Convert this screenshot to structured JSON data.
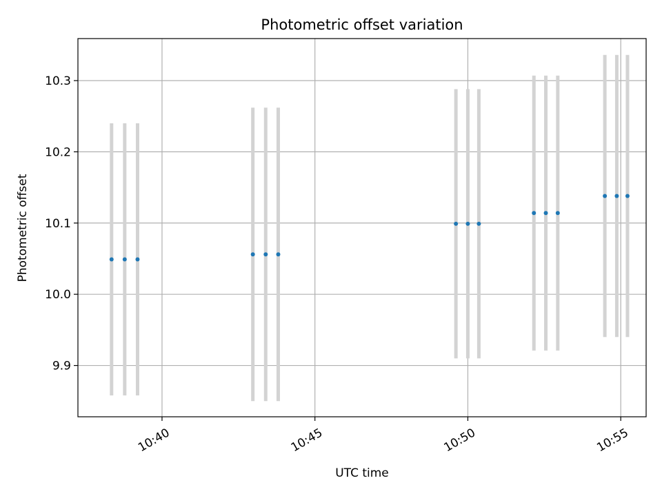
{
  "chart_data": {
    "type": "scatter",
    "title": "Photometric offset variation",
    "xlabel": "UTC time",
    "ylabel": "Photometric offset",
    "x_unit": "minutes past 10:00 UTC",
    "xlim": [
      37.25,
      55.83
    ],
    "ylim": [
      9.828,
      10.359
    ],
    "x_ticks": [
      {
        "value": 40,
        "label": "10:40"
      },
      {
        "value": 45,
        "label": "10:45"
      },
      {
        "value": 50,
        "label": "10:50"
      },
      {
        "value": 55,
        "label": "10:55"
      }
    ],
    "y_ticks": [
      {
        "value": 9.9,
        "label": "9.9"
      },
      {
        "value": 10.0,
        "label": "10.0"
      },
      {
        "value": 10.1,
        "label": "10.1"
      },
      {
        "value": 10.2,
        "label": "10.2"
      },
      {
        "value": 10.3,
        "label": "10.3"
      }
    ],
    "grid": true,
    "point_color": "#1f77b4",
    "errorbar_color": "#d3d3d3",
    "points": [
      {
        "x": 38.35,
        "y": 10.049,
        "err": 0.191
      },
      {
        "x": 38.78,
        "y": 10.049,
        "err": 0.191
      },
      {
        "x": 39.2,
        "y": 10.049,
        "err": 0.191
      },
      {
        "x": 42.97,
        "y": 10.056,
        "err": 0.206
      },
      {
        "x": 43.39,
        "y": 10.056,
        "err": 0.206
      },
      {
        "x": 43.8,
        "y": 10.056,
        "err": 0.206
      },
      {
        "x": 49.61,
        "y": 10.099,
        "err": 0.189
      },
      {
        "x": 50.0,
        "y": 10.099,
        "err": 0.189
      },
      {
        "x": 50.36,
        "y": 10.099,
        "err": 0.189
      },
      {
        "x": 52.16,
        "y": 10.114,
        "err": 0.193
      },
      {
        "x": 52.55,
        "y": 10.114,
        "err": 0.193
      },
      {
        "x": 52.94,
        "y": 10.114,
        "err": 0.193
      },
      {
        "x": 54.48,
        "y": 10.138,
        "err": 0.198
      },
      {
        "x": 54.87,
        "y": 10.138,
        "err": 0.198
      },
      {
        "x": 55.22,
        "y": 10.138,
        "err": 0.198
      }
    ]
  }
}
